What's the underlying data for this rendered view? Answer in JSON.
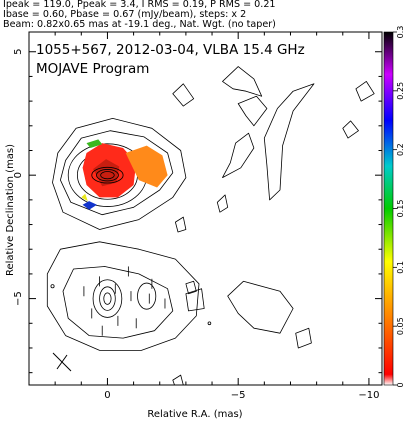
{
  "header": {
    "line1": "Ipeak = 119.0, Ppeak = 3.4, I RMS = 0.19, P RMS = 0.21",
    "line2": "Ibase = 0.60, Pbase = 0.67 (mJy/beam), steps: x 2",
    "line3": "Beam: 0.82x0.65 mas at -19.1 deg., Nat. Wgt. (no taper)"
  },
  "chart_data": {
    "type": "contour",
    "title": "1055+567, 2012-03-04, VLBA 15.4 GHz",
    "subtitle": "MOJAVE Program",
    "xlabel": "Relative R.A. (mas)",
    "ylabel": "Relative Declination (mas)",
    "xlim": [
      3.0,
      -10.5
    ],
    "ylim": [
      -8.5,
      5.8
    ],
    "x_ticks": [
      0,
      -5,
      -10
    ],
    "x_tick_labels": [
      "0",
      "−5",
      "−10"
    ],
    "y_ticks": [
      5,
      0,
      -5
    ],
    "y_tick_labels": [
      "5",
      "0",
      "−5"
    ],
    "colorbar": {
      "range": [
        0,
        0.3
      ],
      "ticks": [
        0,
        0.05,
        0.1,
        0.15,
        0.2,
        0.25,
        0.3
      ],
      "tick_labels": [
        "0",
        "0.05",
        "0.1",
        "0.15",
        "0.2",
        "0.25",
        "0.3"
      ],
      "colors": [
        "#ffffff",
        "#ff0000",
        "#ff8800",
        "#ffff00",
        "#00cc00",
        "#00cccc",
        "#0000ff",
        "#cc00ff",
        "#000000"
      ]
    },
    "core": {
      "x": 0.0,
      "y": 0.0
    },
    "colors": {
      "contour": "#000000",
      "pol_red": "#ff2a1a",
      "pol_orange": "#ff8a1a",
      "pol_green": "#3ab81f",
      "pol_blue": "#1133cc",
      "pol_yellow": "#e8e81a"
    }
  }
}
